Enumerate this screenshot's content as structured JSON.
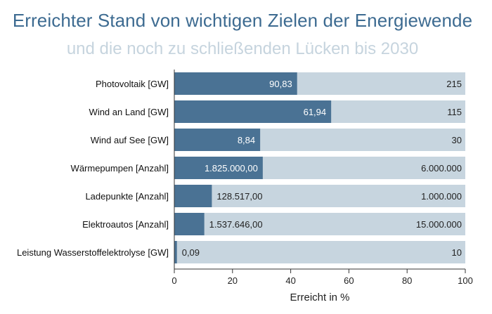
{
  "title": "Erreichter Stand von wichtigen Zielen der Energiewende",
  "subtitle": "und die noch zu schließenden Lücken bis 2030",
  "colors": {
    "achieved": "#4a7294",
    "target": "#c7d5df",
    "title": "#3d6b91",
    "subtitle": "#c6d4de",
    "label_on_dark": "#ffffff",
    "label_on_light": "#222222"
  },
  "chart_data": {
    "type": "bar",
    "orientation": "horizontal",
    "stacked_with_target": true,
    "xlabel": "Erreicht in %",
    "xlim": [
      0,
      100
    ],
    "xticks": [
      0,
      20,
      40,
      60,
      80,
      100
    ],
    "grid": false,
    "categories": [
      "Photovoltaik [GW]",
      "Wind an Land [GW]",
      "Wind auf See [GW]",
      "Wärmepumpen [Anzahl]",
      "Ladepunkte [Anzahl]",
      "Elektroautos [Anzahl]",
      "Leistung Wasserstoffelektrolyse [GW]"
    ],
    "achieved_percent": [
      42.2,
      53.9,
      29.5,
      30.4,
      12.9,
      10.3,
      0.9
    ],
    "achieved_labels": [
      "90,83",
      "61,94",
      "8,84",
      "1.825.000,00",
      "128.517,00",
      "1.537.646,00",
      "0,09"
    ],
    "target_labels": [
      "215",
      "115",
      "30",
      "6.000.000",
      "1.000.000",
      "15.000.000",
      "10"
    ]
  }
}
